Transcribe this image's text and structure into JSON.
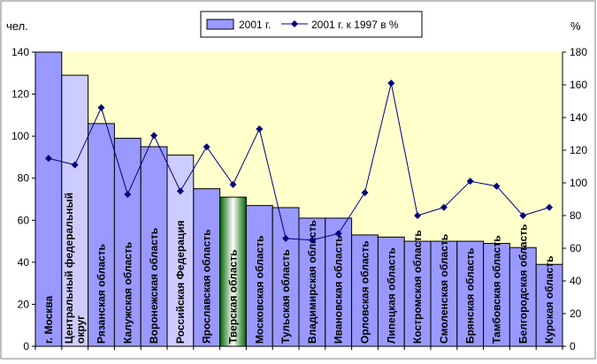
{
  "chart_data": {
    "type": "bar",
    "categories": [
      "г. Москва",
      "Центральный федеральный округ",
      "Рязанская область",
      "Калужская область",
      "Воронежская область",
      "Российская Федерация",
      "Ярославская область",
      "Тверская область",
      "Московская область",
      "Тульская область",
      "Владимирская область",
      "Ивановская область",
      "Орловская область",
      "Липецкая область",
      "Костромская область",
      "Смоленская область",
      "Брянская область",
      "Тамбовская область",
      "Белгородская область",
      "Курская область"
    ],
    "category_lines": [
      [
        "г. Москва"
      ],
      [
        "Центральный федеральный",
        "округ"
      ],
      [
        "Рязанская область"
      ],
      [
        "Калужская область"
      ],
      [
        "Воронежская область"
      ],
      [
        "Российская Федерация"
      ],
      [
        "Ярославская область"
      ],
      [
        "Тверская область"
      ],
      [
        "Московская область"
      ],
      [
        "Тульская область"
      ],
      [
        "Владимирская область"
      ],
      [
        "Ивановская область"
      ],
      [
        "Орловская область"
      ],
      [
        "Липецкая область"
      ],
      [
        "Костромская область"
      ],
      [
        "Смоленская область"
      ],
      [
        "Брянская область"
      ],
      [
        "Тамбовская область"
      ],
      [
        "Белгородская область"
      ],
      [
        "Курская область"
      ]
    ],
    "series": [
      {
        "name": "2001 г.",
        "kind": "bar",
        "axis": "left",
        "values": [
          140,
          129,
          106,
          99,
          95,
          91,
          75,
          71,
          67,
          66,
          61,
          61,
          53,
          52,
          50,
          50,
          50,
          49,
          47,
          39
        ]
      },
      {
        "name": "2001 г. к 1997 в  %",
        "kind": "line",
        "axis": "right",
        "values": [
          115,
          111,
          146,
          93,
          129,
          95,
          122,
          99,
          133,
          66,
          65,
          69,
          94,
          161,
          80,
          85,
          101,
          98,
          80,
          85
        ]
      }
    ],
    "ylabel": "чел.",
    "y2label": "%",
    "ylim": [
      0,
      140
    ],
    "yticks": [
      0,
      20,
      40,
      60,
      80,
      100,
      120,
      140
    ],
    "y2lim": [
      0,
      180
    ],
    "y2ticks": [
      0,
      20,
      40,
      60,
      80,
      100,
      120,
      140,
      160,
      180
    ],
    "grid": false,
    "legend_position": "top-center",
    "colors": {
      "plot_background": "#ffffcc",
      "bar_default": "#9999ff",
      "bar_aggregate": "#ccccff",
      "bar_highlight_dark": "#006600",
      "bar_highlight_light": "#ffffff",
      "line": "#000080",
      "marker": "#000080",
      "axis": "#000000",
      "frame": "#808080"
    },
    "bar_styles": [
      "plain",
      "aggregate",
      "plain",
      "plain",
      "plain",
      "aggregate",
      "plain",
      "highlight",
      "plain",
      "plain",
      "plain",
      "plain",
      "plain",
      "plain",
      "plain",
      "plain",
      "plain",
      "plain",
      "plain",
      "plain"
    ]
  }
}
